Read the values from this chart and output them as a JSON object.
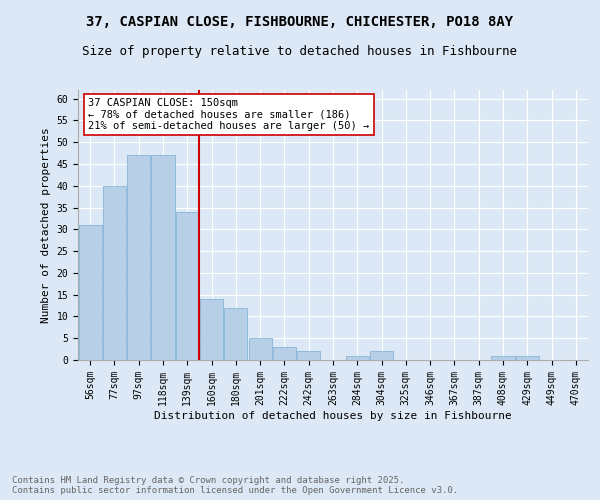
{
  "title1": "37, CASPIAN CLOSE, FISHBOURNE, CHICHESTER, PO18 8AY",
  "title2": "Size of property relative to detached houses in Fishbourne",
  "xlabel": "Distribution of detached houses by size in Fishbourne",
  "ylabel": "Number of detached properties",
  "bin_labels": [
    "56sqm",
    "77sqm",
    "97sqm",
    "118sqm",
    "139sqm",
    "160sqm",
    "180sqm",
    "201sqm",
    "222sqm",
    "242sqm",
    "263sqm",
    "284sqm",
    "304sqm",
    "325sqm",
    "346sqm",
    "367sqm",
    "387sqm",
    "408sqm",
    "429sqm",
    "449sqm",
    "470sqm"
  ],
  "bar_values": [
    31,
    40,
    47,
    47,
    34,
    14,
    12,
    5,
    3,
    2,
    0,
    1,
    2,
    0,
    0,
    0,
    0,
    1,
    1,
    0,
    0
  ],
  "bar_color": "#b8cfe8",
  "bar_edge_color": "#7aadd4",
  "vline_x": 4.5,
  "vline_color": "#cc0000",
  "annotation_text": "37 CASPIAN CLOSE: 150sqm\n← 78% of detached houses are smaller (186)\n21% of semi-detached houses are larger (50) →",
  "annotation_box_color": "#ffffff",
  "annotation_box_edge_color": "#cc0000",
  "ylim": [
    0,
    62
  ],
  "yticks": [
    0,
    5,
    10,
    15,
    20,
    25,
    30,
    35,
    40,
    45,
    50,
    55,
    60
  ],
  "footnote": "Contains HM Land Registry data © Crown copyright and database right 2025.\nContains public sector information licensed under the Open Government Licence v3.0.",
  "bg_color": "#dce8f5",
  "plot_bg_color": "#dce8f5",
  "grid_color": "#ffffff",
  "title_fontsize": 10,
  "subtitle_fontsize": 9,
  "axis_label_fontsize": 8,
  "tick_fontsize": 7,
  "annotation_fontsize": 7.5,
  "footnote_fontsize": 6.5,
  "footnote_color": "#666666"
}
